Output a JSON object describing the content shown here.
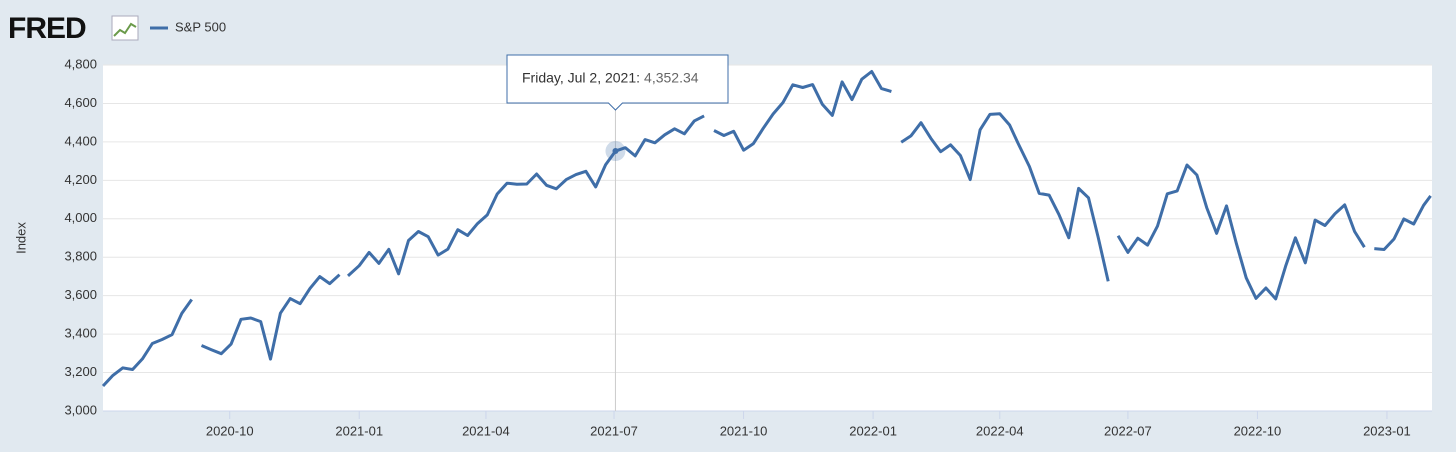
{
  "logo": "FRED",
  "chart_data": {
    "type": "line",
    "y_label": "Index",
    "xlim": [
      "2020-07-03",
      "2023-02-02"
    ],
    "xticks": [
      {
        "value": "2020-10-01",
        "label": "2020-10"
      },
      {
        "value": "2021-01-01",
        "label": "2021-01"
      },
      {
        "value": "2021-04-01",
        "label": "2021-04"
      },
      {
        "value": "2021-07-01",
        "label": "2021-07"
      },
      {
        "value": "2021-10-01",
        "label": "2021-10"
      },
      {
        "value": "2022-01-01",
        "label": "2022-01"
      },
      {
        "value": "2022-04-01",
        "label": "2022-04"
      },
      {
        "value": "2022-07-01",
        "label": "2022-07"
      },
      {
        "value": "2022-10-01",
        "label": "2022-10"
      },
      {
        "value": "2023-01-01",
        "label": "2023-01"
      }
    ],
    "ylim": [
      3000,
      4800
    ],
    "yticks": [
      {
        "value": 3000,
        "label": "3,000"
      },
      {
        "value": 3200,
        "label": "3,200"
      },
      {
        "value": 3400,
        "label": "3,400"
      },
      {
        "value": 3600,
        "label": "3,600"
      },
      {
        "value": 3800,
        "label": "3,800"
      },
      {
        "value": 4000,
        "label": "4,000"
      },
      {
        "value": 4200,
        "label": "4,200"
      },
      {
        "value": 4400,
        "label": "4,400"
      },
      {
        "value": 4600,
        "label": "4,600"
      },
      {
        "value": 4800,
        "label": "4,800"
      }
    ],
    "grid": true,
    "x": [
      "2020-07-03",
      "2020-07-10",
      "2020-07-17",
      "2020-07-24",
      "2020-07-31",
      "2020-08-07",
      "2020-08-14",
      "2020-08-21",
      "2020-08-28",
      "2020-09-04",
      "2020-09-08",
      "2020-09-11",
      "2020-09-18",
      "2020-09-25",
      "2020-10-02",
      "2020-10-09",
      "2020-10-16",
      "2020-10-23",
      "2020-10-30",
      "2020-11-06",
      "2020-11-13",
      "2020-11-20",
      "2020-11-27",
      "2020-12-04",
      "2020-12-11",
      "2020-12-18",
      "2020-12-22",
      "2020-12-24",
      "2021-01-01",
      "2021-01-08",
      "2021-01-15",
      "2021-01-22",
      "2021-01-29",
      "2021-02-05",
      "2021-02-12",
      "2021-02-19",
      "2021-02-26",
      "2021-03-05",
      "2021-03-12",
      "2021-03-19",
      "2021-03-26",
      "2021-04-02",
      "2021-04-09",
      "2021-04-16",
      "2021-04-23",
      "2021-04-30",
      "2021-05-07",
      "2021-05-14",
      "2021-05-21",
      "2021-05-28",
      "2021-06-04",
      "2021-06-11",
      "2021-06-18",
      "2021-06-25",
      "2021-07-02",
      "2021-07-09",
      "2021-07-16",
      "2021-07-23",
      "2021-07-30",
      "2021-08-06",
      "2021-08-13",
      "2021-08-20",
      "2021-08-27",
      "2021-09-03",
      "2021-09-07",
      "2021-09-10",
      "2021-09-17",
      "2021-09-24",
      "2021-10-01",
      "2021-10-08",
      "2021-10-15",
      "2021-10-22",
      "2021-10-29",
      "2021-11-05",
      "2021-11-12",
      "2021-11-19",
      "2021-11-26",
      "2021-12-03",
      "2021-12-10",
      "2021-12-17",
      "2021-12-24",
      "2021-12-31",
      "2022-01-07",
      "2022-01-14",
      "2022-01-18",
      "2022-01-21",
      "2022-01-28",
      "2022-02-04",
      "2022-02-11",
      "2022-02-18",
      "2022-02-25",
      "2022-03-04",
      "2022-03-11",
      "2022-03-18",
      "2022-03-25",
      "2022-04-01",
      "2022-04-08",
      "2022-04-14",
      "2022-04-22",
      "2022-04-29",
      "2022-05-06",
      "2022-05-13",
      "2022-05-20",
      "2022-05-27",
      "2022-06-03",
      "2022-06-10",
      "2022-06-17",
      "2022-06-21",
      "2022-06-24",
      "2022-07-01",
      "2022-07-08",
      "2022-07-15",
      "2022-07-22",
      "2022-07-29",
      "2022-08-05",
      "2022-08-12",
      "2022-08-19",
      "2022-08-26",
      "2022-09-02",
      "2022-09-09",
      "2022-09-16",
      "2022-09-23",
      "2022-09-30",
      "2022-10-07",
      "2022-10-14",
      "2022-10-21",
      "2022-10-28",
      "2022-11-04",
      "2022-11-11",
      "2022-11-18",
      "2022-11-25",
      "2022-12-02",
      "2022-12-09",
      "2022-12-16",
      "2022-12-20",
      "2022-12-23",
      "2022-12-30",
      "2023-01-06",
      "2023-01-13",
      "2023-01-20",
      "2023-01-27",
      "2023-02-01"
    ],
    "series": [
      {
        "name": "S&P 500",
        "color": "#3f6ea8",
        "values": [
          3130,
          3185,
          3224,
          3216,
          3271,
          3351,
          3372,
          3397,
          3508,
          3580,
          null,
          3341,
          3319,
          3298,
          3348,
          3477,
          3484,
          3465,
          3270,
          3509,
          3585,
          3558,
          3638,
          3699,
          3663,
          3709,
          null,
          3703,
          3756,
          3825,
          3768,
          3841,
          3714,
          3887,
          3934,
          3907,
          3811,
          3842,
          3943,
          3913,
          3975,
          4020,
          4129,
          4185,
          4180,
          4181,
          4233,
          4174,
          4156,
          4204,
          4230,
          4247,
          4166,
          4281,
          4352.34,
          4370,
          4327,
          4412,
          4395,
          4437,
          4468,
          4442,
          4509,
          4535,
          null,
          4459,
          4433,
          4455,
          4357,
          4391,
          4471,
          4545,
          4605,
          4697,
          4683,
          4698,
          4595,
          4538,
          4712,
          4620,
          4726,
          4766,
          4677,
          4662,
          null,
          4398,
          4432,
          4500,
          4419,
          4349,
          4385,
          4329,
          4204,
          4463,
          4543,
          4546,
          4488,
          4392,
          4272,
          4132,
          4123,
          4023,
          3901,
          4158,
          4109,
          3901,
          3675,
          null,
          3912,
          3825,
          3899,
          3863,
          3962,
          4130,
          4145,
          4280,
          4228,
          4058,
          3924,
          4067,
          3873,
          3693,
          3586,
          3640,
          3583,
          3753,
          3901,
          3771,
          3993,
          3965,
          4026,
          4072,
          3934,
          3852,
          null,
          3845,
          3840,
          3895,
          3999,
          3973,
          4070,
          4119
        ]
      }
    ],
    "tooltip": {
      "label": "Friday, Jul 2, 2021:",
      "value": 4352.34,
      "value_label": "4,352.34"
    }
  }
}
